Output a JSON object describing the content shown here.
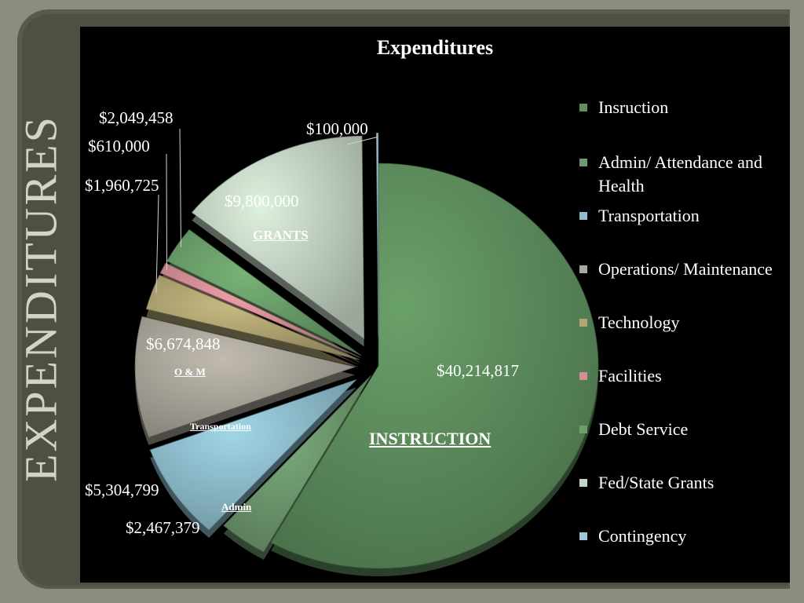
{
  "side_title": "EXPENDITURES",
  "chart_data": {
    "type": "pie",
    "title": "Expenditures",
    "slices": [
      {
        "legend": "Insruction",
        "value": 40214817,
        "value_label": "$40,214,817",
        "category_label": "INSTRUCTION",
        "color": "#5f8f5f"
      },
      {
        "legend": "Admin/ Attendance and Health",
        "value": 2467379,
        "value_label": "$2,467,379",
        "category_label": "Admin",
        "color": "#6f9a6f"
      },
      {
        "legend": "Transportation",
        "value": 5304799,
        "value_label": "$5,304,799",
        "category_label": "Transportation",
        "color": "#8fbfcf"
      },
      {
        "legend": "Operations/ Maintenance",
        "value": 6674848,
        "value_label": "$6,674,848",
        "category_label": "O & M",
        "color": "#aca79c"
      },
      {
        "legend": "Technology",
        "value": 1960725,
        "value_label": "$1,960,725",
        "category_label": "",
        "color": "#b2a773"
      },
      {
        "legend": "Facilities",
        "value": 610000,
        "value_label": "$610,000",
        "category_label": "",
        "color": "#d38f96"
      },
      {
        "legend": "Debt Service",
        "value": 2049458,
        "value_label": "$2,049,458",
        "category_label": "",
        "color": "#6b9f6b"
      },
      {
        "legend": "Fed/State Grants",
        "value": 9800000,
        "value_label": "$9,800,000",
        "category_label": "GRANTS",
        "color": "#c6d6c6"
      },
      {
        "legend": "Contingency",
        "value": 100000,
        "value_label": "$100,000",
        "category_label": "",
        "color": "#9fc6d7"
      }
    ],
    "legend_position": "right"
  }
}
